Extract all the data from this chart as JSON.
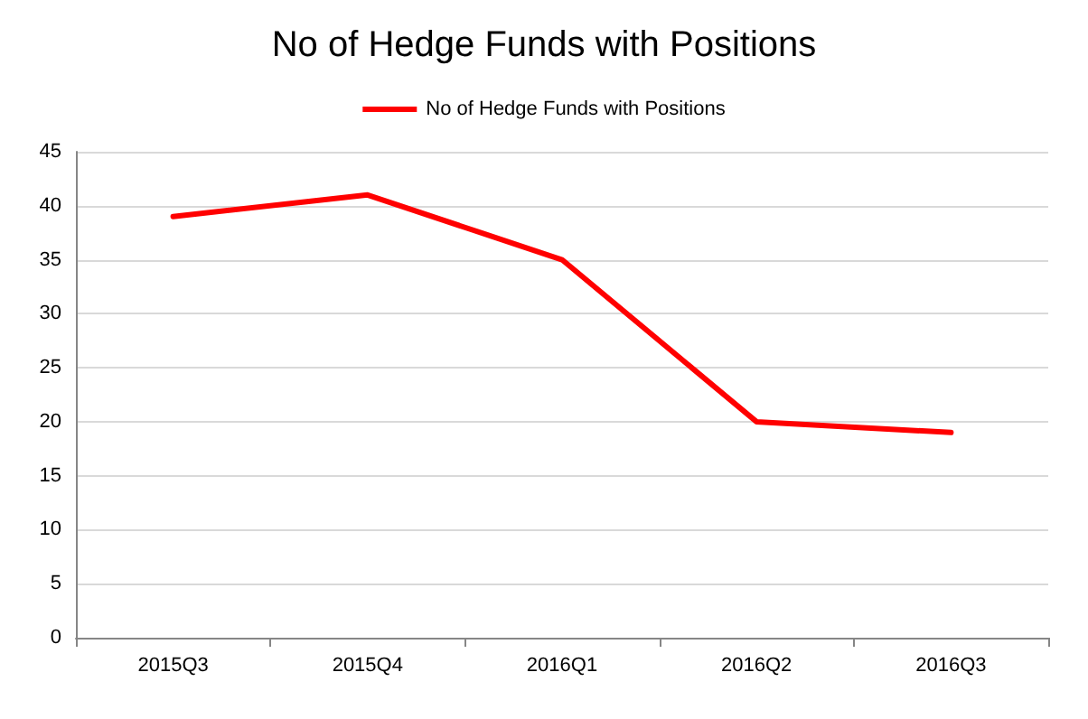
{
  "chart_data": {
    "type": "line",
    "title": "No of Hedge Funds with Positions",
    "categories": [
      "2015Q3",
      "2015Q4",
      "2016Q1",
      "2016Q2",
      "2016Q3"
    ],
    "series": [
      {
        "name": "No of Hedge Funds with Positions",
        "color": "#ff0000",
        "values": [
          39,
          41,
          35,
          20,
          19
        ]
      }
    ],
    "ylim": [
      0,
      45
    ],
    "yticks": [
      0,
      5,
      10,
      15,
      20,
      25,
      30,
      35,
      40,
      45
    ],
    "grid": "y",
    "legend": "top",
    "marker": "none",
    "line_style": "solid"
  }
}
